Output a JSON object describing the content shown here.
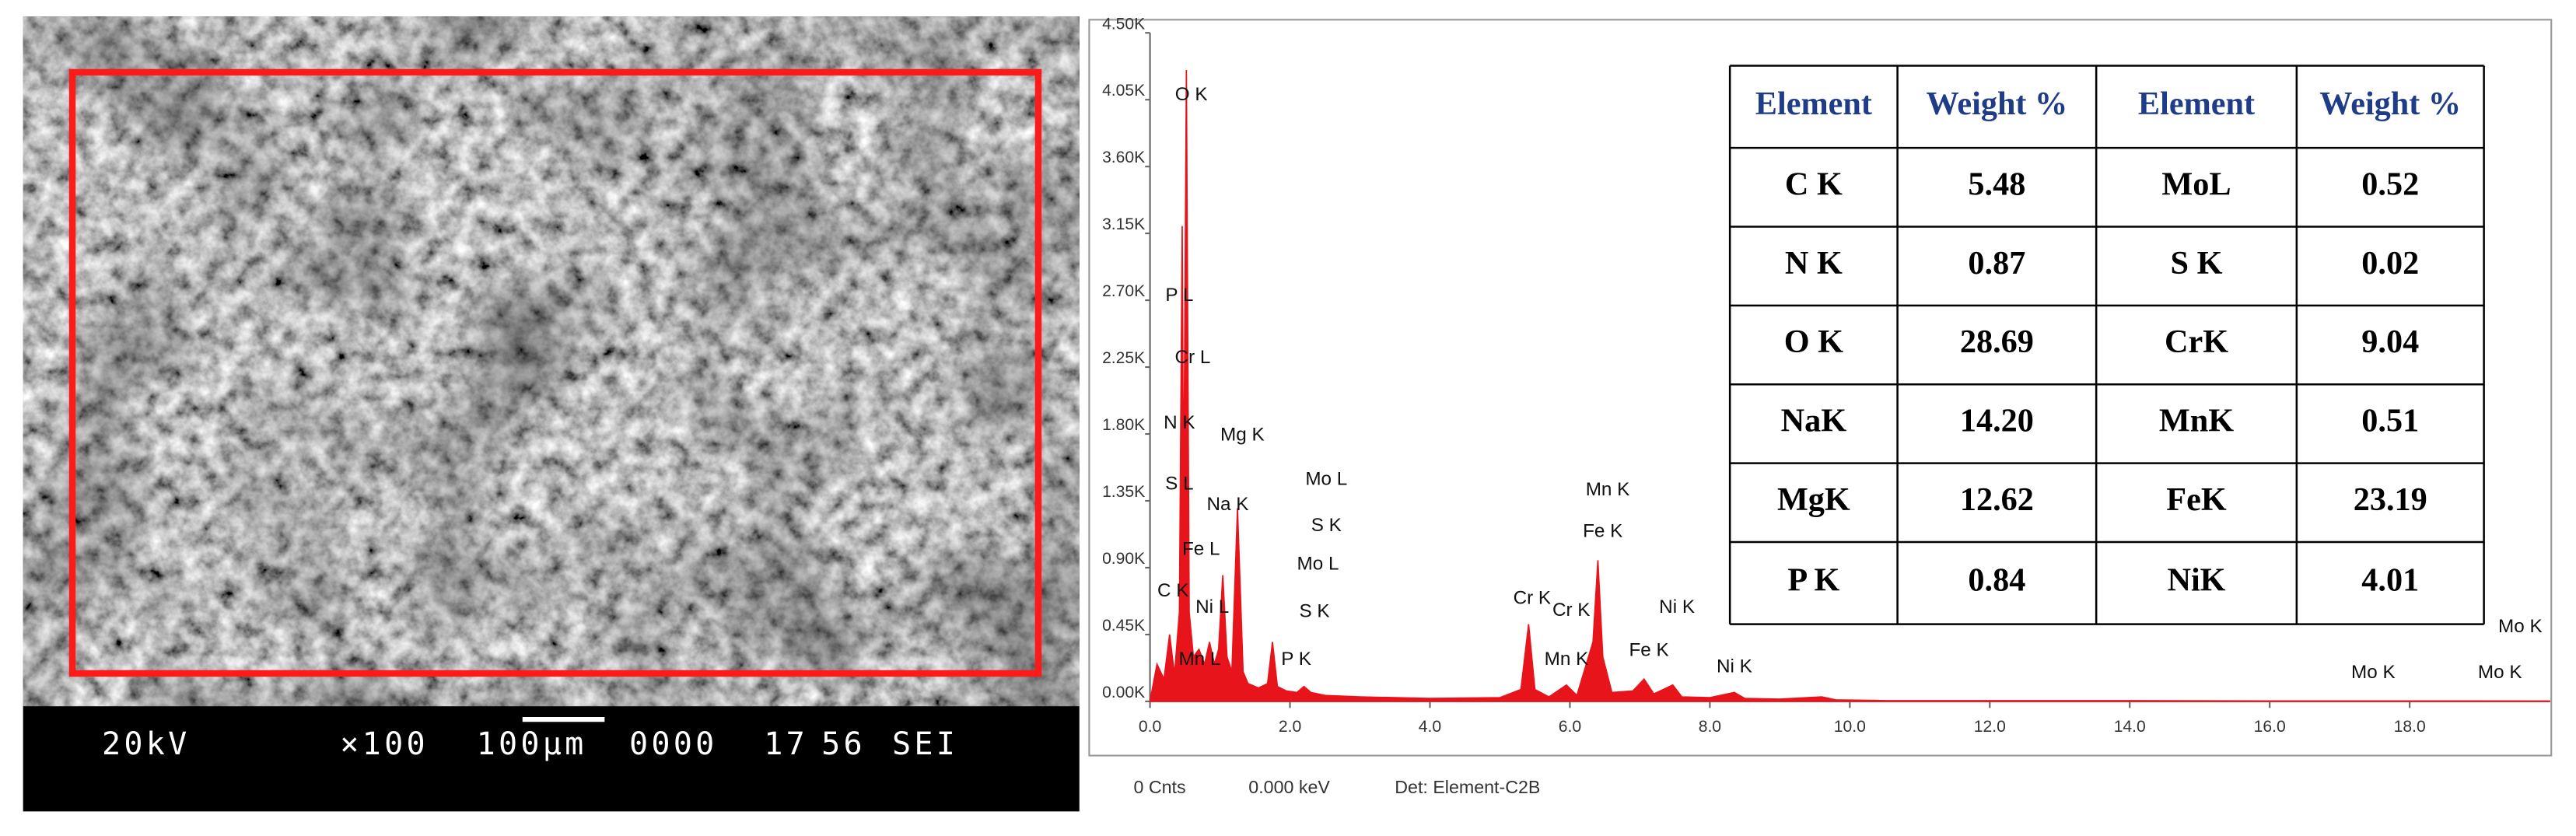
{
  "sem_bar": [
    "20kV",
    "×100",
    "100μm",
    "0000",
    "17",
    "56",
    "SEI"
  ],
  "chart_data": {
    "type": "area",
    "color": "#e8141b",
    "xlim": [
      0,
      20
    ],
    "ylim": [
      0,
      4500
    ],
    "yticks": [
      {
        "value": 0,
        "label": "0.00K"
      },
      {
        "value": 450,
        "label": "0.45K"
      },
      {
        "value": 900,
        "label": "0.90K"
      },
      {
        "value": 1350,
        "label": "1.35K"
      },
      {
        "value": 1800,
        "label": "1.80K"
      },
      {
        "value": 2250,
        "label": "2.25K"
      },
      {
        "value": 2700,
        "label": "2.70K"
      },
      {
        "value": 3150,
        "label": "3.15K"
      },
      {
        "value": 3600,
        "label": "3.60K"
      },
      {
        "value": 4050,
        "label": "4.05K"
      },
      {
        "value": 4500,
        "label": "4.50K"
      }
    ],
    "xticks": [
      {
        "value": 0,
        "label": "0.0"
      },
      {
        "value": 2,
        "label": "2.0"
      },
      {
        "value": 4,
        "label": "4.0"
      },
      {
        "value": 6,
        "label": "6.0"
      },
      {
        "value": 8,
        "label": "8.0"
      },
      {
        "value": 10,
        "label": "10.0"
      },
      {
        "value": 12,
        "label": "12.0"
      },
      {
        "value": 14,
        "label": "14.0"
      },
      {
        "value": 16,
        "label": "16.0"
      },
      {
        "value": 18,
        "label": "18.0"
      }
    ],
    "x": [
      0.0,
      0.1,
      0.2,
      0.28,
      0.35,
      0.42,
      0.46,
      0.48,
      0.52,
      0.56,
      0.62,
      0.7,
      0.78,
      0.85,
      0.92,
      0.98,
      1.04,
      1.1,
      1.17,
      1.25,
      1.33,
      1.4,
      1.55,
      1.68,
      1.75,
      1.82,
      1.95,
      2.1,
      2.2,
      2.3,
      2.5,
      3.0,
      4.0,
      5.0,
      5.3,
      5.41,
      5.5,
      5.7,
      5.95,
      6.1,
      6.33,
      6.4,
      6.47,
      6.6,
      6.9,
      7.06,
      7.2,
      7.47,
      7.6,
      8.0,
      8.35,
      8.5,
      9.0,
      9.6,
      9.8,
      10.5,
      12,
      14,
      16,
      18,
      20
    ],
    "values": [
      0,
      250,
      150,
      450,
      180,
      600,
      3200,
      1200,
      4250,
      600,
      300,
      350,
      250,
      400,
      250,
      350,
      850,
      300,
      200,
      1300,
      200,
      120,
      90,
      120,
      400,
      100,
      70,
      60,
      100,
      60,
      40,
      30,
      20,
      25,
      80,
      520,
      80,
      30,
      110,
      40,
      400,
      950,
      300,
      60,
      70,
      150,
      50,
      110,
      30,
      25,
      60,
      20,
      15,
      30,
      10,
      5,
      5,
      5,
      3,
      3,
      2
    ],
    "annotations": [
      {
        "text": "O K",
        "x": 0.59,
        "y": 4080
      },
      {
        "text": "P L",
        "x": 0.42,
        "y": 2730
      },
      {
        "text": "Cr L",
        "x": 0.61,
        "y": 2310
      },
      {
        "text": "N K",
        "x": 0.42,
        "y": 1870
      },
      {
        "text": "Mg K",
        "x": 1.32,
        "y": 1790
      },
      {
        "text": "S L",
        "x": 0.42,
        "y": 1460
      },
      {
        "text": "Na K",
        "x": 1.11,
        "y": 1320
      },
      {
        "text": "Fe L",
        "x": 0.73,
        "y": 1020
      },
      {
        "text": "Mo L",
        "x": 2.52,
        "y": 1490
      },
      {
        "text": "S K",
        "x": 2.52,
        "y": 1180
      },
      {
        "text": "Mo L",
        "x": 2.4,
        "y": 920
      },
      {
        "text": "C K",
        "x": 0.33,
        "y": 740
      },
      {
        "text": "Ni L",
        "x": 0.89,
        "y": 630
      },
      {
        "text": "S K",
        "x": 2.35,
        "y": 600
      },
      {
        "text": "Mn L",
        "x": 0.71,
        "y": 280
      },
      {
        "text": "P K",
        "x": 2.09,
        "y": 280
      },
      {
        "text": "Mn K",
        "x": 6.54,
        "y": 1420
      },
      {
        "text": "Fe K",
        "x": 6.47,
        "y": 1140
      },
      {
        "text": "Cr K",
        "x": 5.46,
        "y": 690
      },
      {
        "text": "Cr K",
        "x": 6.02,
        "y": 610
      },
      {
        "text": "Ni K",
        "x": 7.53,
        "y": 630
      },
      {
        "text": "Mn K",
        "x": 5.95,
        "y": 280
      },
      {
        "text": "Fe K",
        "x": 7.13,
        "y": 340
      },
      {
        "text": "Ni K",
        "x": 8.35,
        "y": 230
      },
      {
        "text": "Mo K",
        "x": 17.48,
        "y": 190
      },
      {
        "text": "Mo K",
        "x": 19.29,
        "y": 190
      },
      {
        "text": "Mo K",
        "x": 19.58,
        "y": 500
      }
    ],
    "footer": [
      "0 Cnts",
      "0.000 keV",
      "Det: Element-C2B"
    ]
  },
  "table": {
    "header": [
      "Element",
      "Weight %",
      "Element",
      "Weight %"
    ],
    "rows": [
      [
        "C K",
        "5.48",
        "MoL",
        "0.52"
      ],
      [
        "N K",
        "0.87",
        "S K",
        "0.02"
      ],
      [
        "O K",
        "28.69",
        "CrK",
        "9.04"
      ],
      [
        "NaK",
        "14.20",
        "MnK",
        "0.51"
      ],
      [
        "MgK",
        "12.62",
        "FeK",
        "23.19"
      ],
      [
        "P K",
        "0.84",
        "NiK",
        "4.01"
      ]
    ]
  }
}
